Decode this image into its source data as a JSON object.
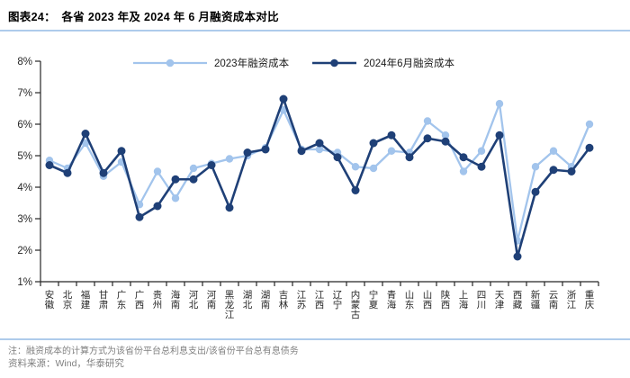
{
  "header": {
    "title": "图表24：　各省 2023 年及 2024 年 6 月融资成本对比"
  },
  "footer": {
    "note": "注：融资成本的计算方式为该省份平台总利息支出/该省份平台总有息债务",
    "source": "资料来源：Wind，华泰研究"
  },
  "colors": {
    "accent_rule": "#AECBEB",
    "series_2023": "#A2C4EC",
    "series_202406": "#1F4077",
    "axis": "#262626",
    "tick_label": "#262626",
    "footer_text": "#808080"
  },
  "chart_data": {
    "type": "line",
    "title": "各省2023年及2024年6月融资成本对比",
    "categories": [
      "安徽",
      "北京",
      "福建",
      "甘肃",
      "广东",
      "广西",
      "贵州",
      "海南",
      "河北",
      "河南",
      "黑龙江",
      "湖北",
      "湖南",
      "吉林",
      "江苏",
      "江西",
      "辽宁",
      "内蒙古",
      "宁夏",
      "青海",
      "山东",
      "山西",
      "陕西",
      "上海",
      "四川",
      "天津",
      "西藏",
      "新疆",
      "云南",
      "浙江",
      "重庆"
    ],
    "series": [
      {
        "id": "2023",
        "name": "2023年融资成本",
        "color": "#A2C4EC",
        "values": [
          4.85,
          4.6,
          5.4,
          4.35,
          4.8,
          3.45,
          4.5,
          3.65,
          4.6,
          4.75,
          4.9,
          5.0,
          5.25,
          6.45,
          5.2,
          5.2,
          5.1,
          4.65,
          4.6,
          5.15,
          5.1,
          6.1,
          5.65,
          4.5,
          5.15,
          6.65,
          2.3,
          4.65,
          5.15,
          4.65,
          6.0
        ]
      },
      {
        "id": "202406",
        "name": "2024年6月融资成本",
        "color": "#1F4077",
        "values": [
          4.7,
          4.45,
          5.7,
          4.45,
          5.15,
          3.05,
          3.4,
          4.25,
          4.25,
          4.7,
          3.35,
          5.1,
          5.2,
          6.8,
          5.15,
          5.4,
          4.95,
          3.9,
          5.4,
          5.65,
          4.95,
          5.55,
          5.45,
          4.95,
          4.65,
          5.65,
          1.8,
          3.85,
          4.55,
          4.5,
          5.25
        ]
      }
    ],
    "xlabel": "",
    "ylabel": "",
    "ylim": [
      1,
      8
    ],
    "yticks": [
      "1%",
      "2%",
      "3%",
      "4%",
      "5%",
      "6%",
      "7%",
      "8%"
    ],
    "grid": false,
    "legend_position": "top-center",
    "unit": "percent"
  }
}
